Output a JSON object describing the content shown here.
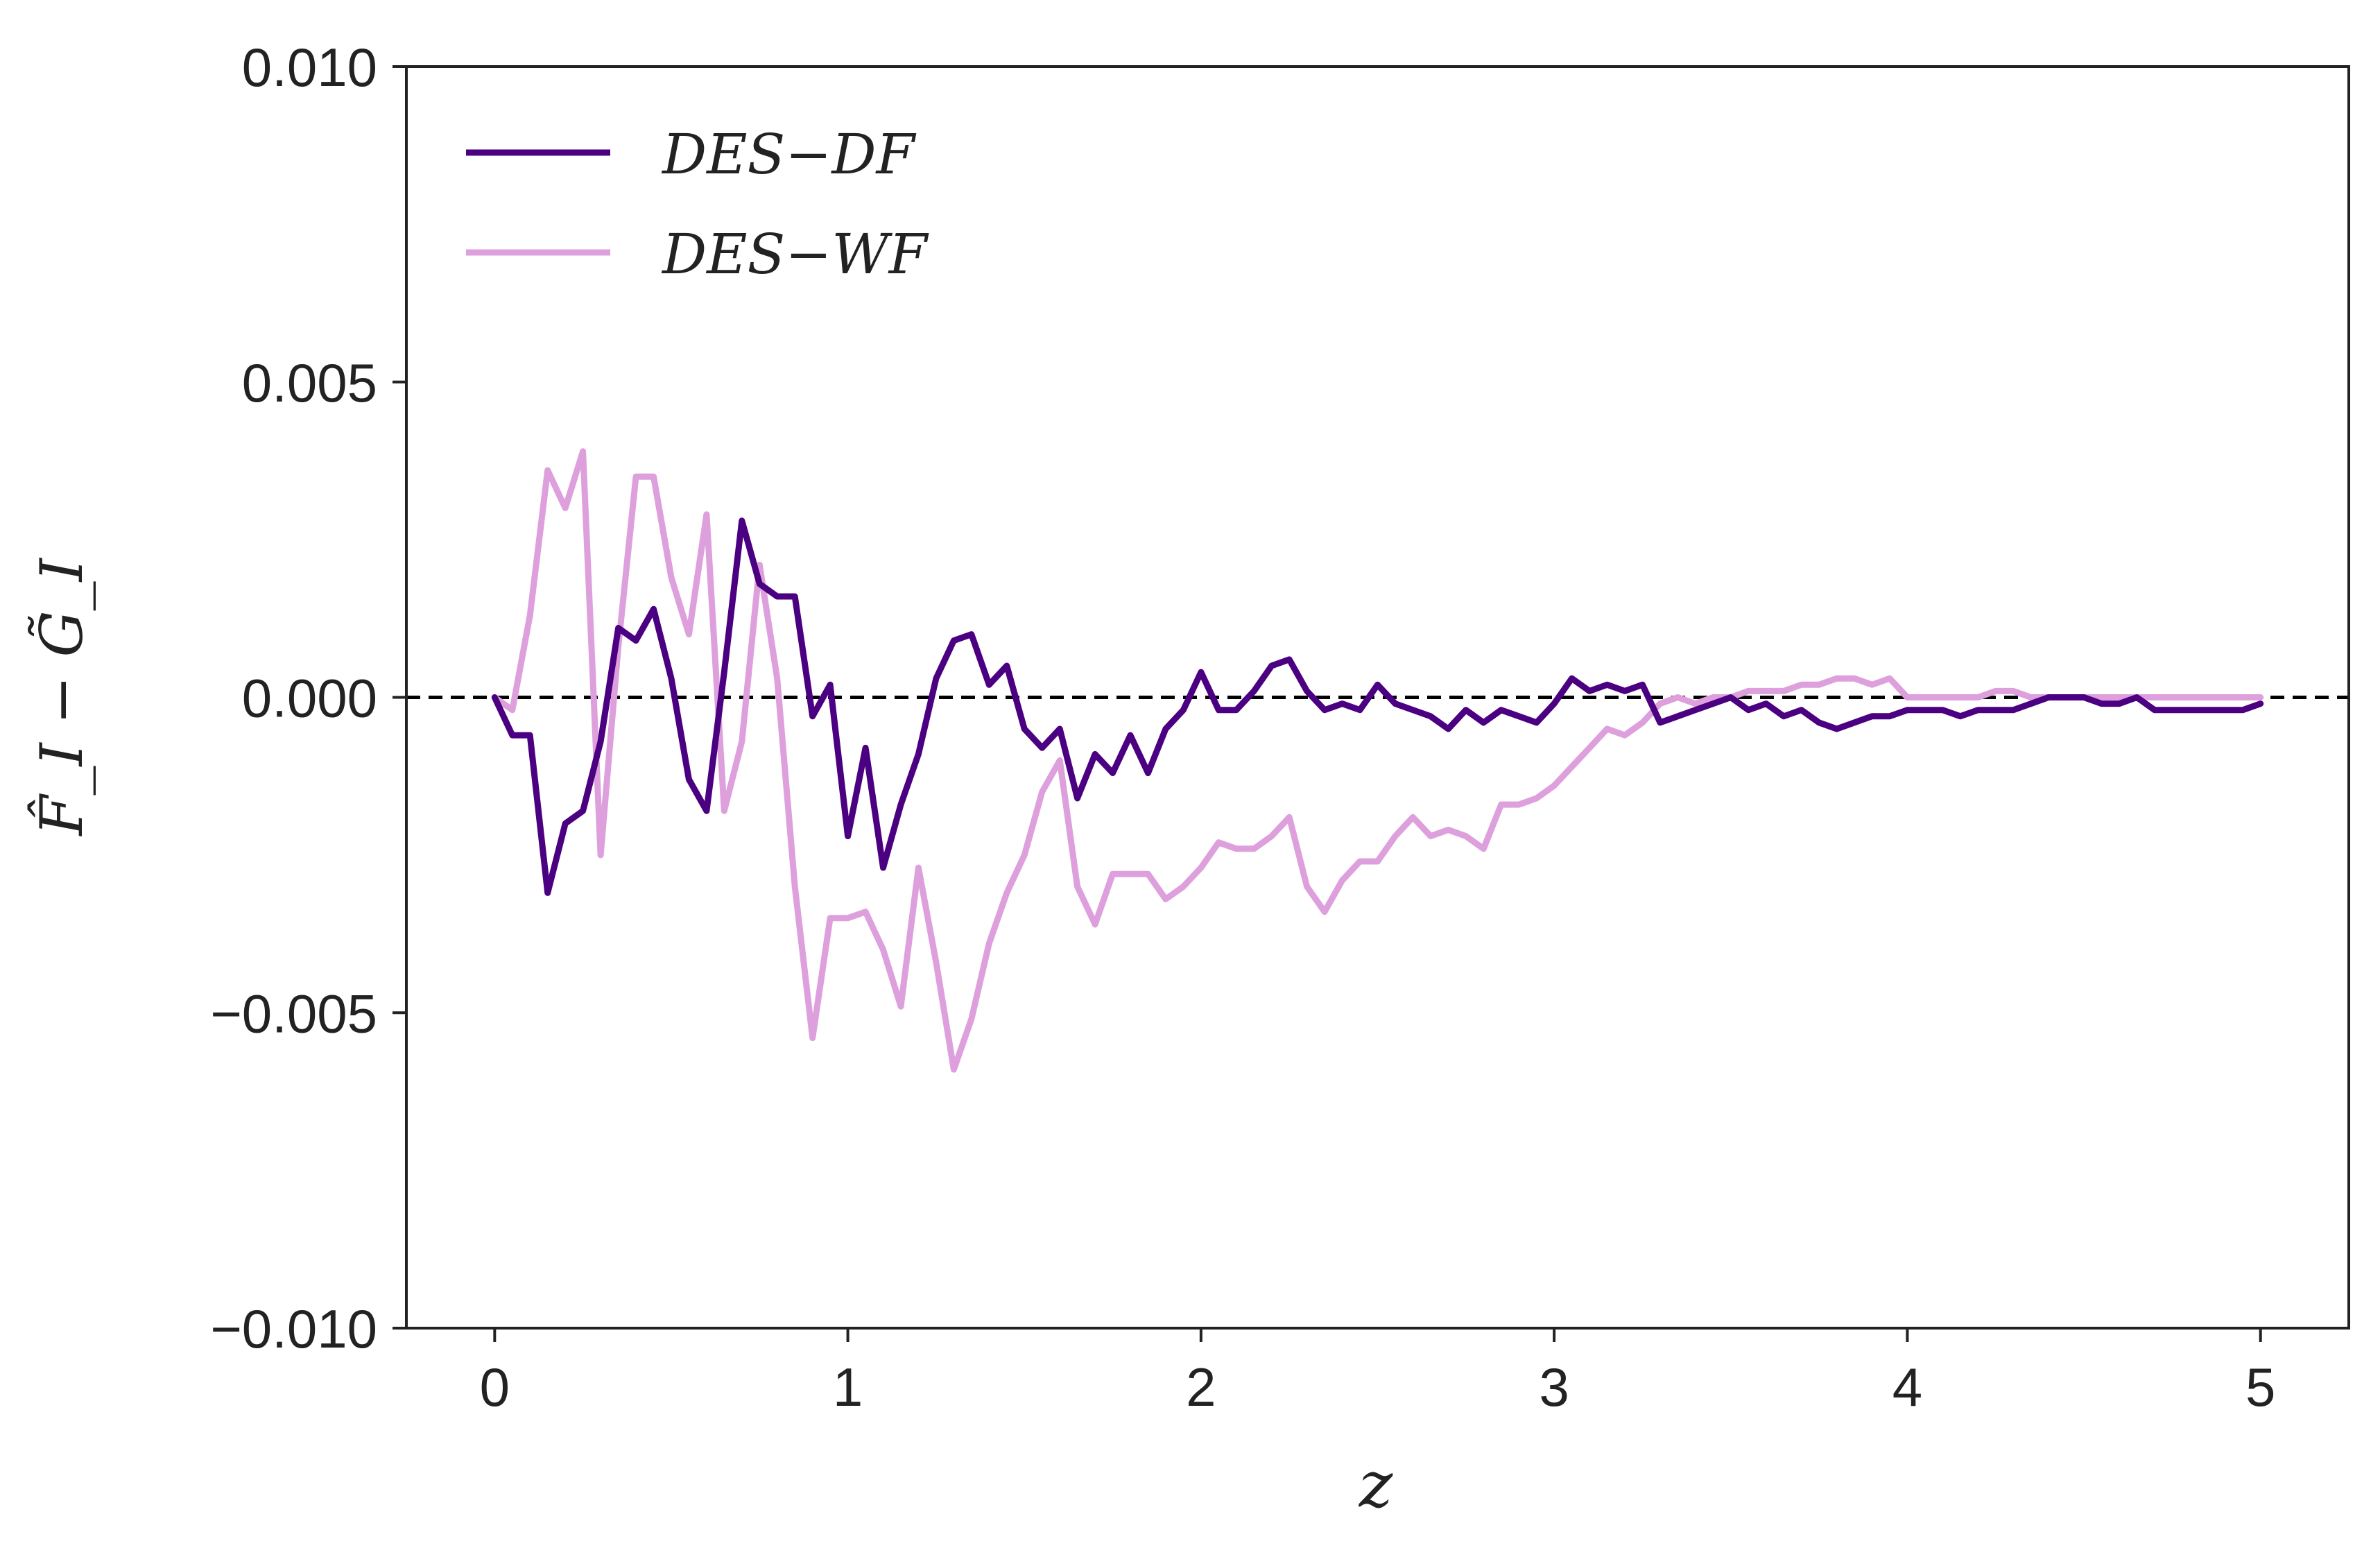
{
  "chart_data": {
    "type": "line",
    "xlabel": "z",
    "ylabel": "F̂_I − G̃_I",
    "xlim": [
      -0.25,
      5.25
    ],
    "ylim": [
      -0.01,
      0.01
    ],
    "xticks": [
      0,
      1,
      2,
      3,
      4,
      5
    ],
    "xtick_labels": [
      "0",
      "1",
      "2",
      "3",
      "4",
      "5"
    ],
    "yticks": [
      -0.01,
      -0.005,
      0.0,
      0.005,
      0.01
    ],
    "ytick_labels": [
      "−0.010",
      "−0.005",
      "0.000",
      "0.005",
      "0.010"
    ],
    "reference_line": {
      "y": 0.0,
      "style": "dashed",
      "color": "#000000"
    },
    "grid": false,
    "legend_position": "top-left",
    "series": [
      {
        "name": "DES−DF",
        "color": "#4b0082",
        "x": [
          0.0,
          0.05,
          0.1,
          0.15,
          0.2,
          0.25,
          0.3,
          0.35,
          0.4,
          0.45,
          0.5,
          0.55,
          0.6,
          0.65,
          0.7,
          0.75,
          0.8,
          0.85,
          0.9,
          0.95,
          1.0,
          1.05,
          1.1,
          1.15,
          1.2,
          1.25,
          1.3,
          1.35,
          1.4,
          1.45,
          1.5,
          1.55,
          1.6,
          1.65,
          1.7,
          1.75,
          1.8,
          1.85,
          1.9,
          1.95,
          2.0,
          2.05,
          2.1,
          2.15,
          2.2,
          2.25,
          2.3,
          2.35,
          2.4,
          2.45,
          2.5,
          2.55,
          2.6,
          2.65,
          2.7,
          2.75,
          2.8,
          2.85,
          2.9,
          2.95,
          3.0,
          3.05,
          3.1,
          3.15,
          3.2,
          3.25,
          3.3,
          3.35,
          3.4,
          3.45,
          3.5,
          3.55,
          3.6,
          3.65,
          3.7,
          3.75,
          3.8,
          3.85,
          3.9,
          3.95,
          4.0,
          4.05,
          4.1,
          4.15,
          4.2,
          4.25,
          4.3,
          4.35,
          4.4,
          4.45,
          4.5,
          4.55,
          4.6,
          4.65,
          4.7,
          4.75,
          4.8,
          4.85,
          4.9,
          4.95,
          5.0
        ],
        "y": [
          0.0,
          -0.0006,
          -0.0006,
          -0.0031,
          -0.002,
          -0.0018,
          -0.0007,
          0.0011,
          0.0009,
          0.0014,
          0.0003,
          -0.0013,
          -0.0018,
          0.0004,
          0.0028,
          0.0018,
          0.0016,
          0.0016,
          -0.0003,
          0.0002,
          -0.0022,
          -0.0008,
          -0.0027,
          -0.0017,
          -0.0009,
          0.0003,
          0.0009,
          0.001,
          0.0002,
          0.0005,
          -0.0005,
          -0.0008,
          -0.0005,
          -0.0016,
          -0.0009,
          -0.0012,
          -0.0006,
          -0.0012,
          -0.0005,
          -0.0002,
          0.0004,
          -0.0002,
          -0.0002,
          0.0001,
          0.0005,
          0.0006,
          0.0001,
          -0.0002,
          -0.0001,
          -0.0002,
          0.0002,
          -0.0001,
          -0.0002,
          -0.0003,
          -0.0005,
          -0.0002,
          -0.0004,
          -0.0002,
          -0.0003,
          -0.0004,
          -0.0001,
          0.0003,
          0.0001,
          0.0002,
          0.0001,
          0.0002,
          -0.0004,
          -0.0003,
          -0.0002,
          -0.0001,
          0.0,
          -0.0002,
          -0.0001,
          -0.0003,
          -0.0002,
          -0.0004,
          -0.0005,
          -0.0004,
          -0.0003,
          -0.0003,
          -0.0002,
          -0.0002,
          -0.0002,
          -0.0003,
          -0.0002,
          -0.0002,
          -0.0002,
          -0.0001,
          0.0,
          0.0,
          0.0,
          -0.0001,
          -0.0001,
          0.0,
          -0.0002,
          -0.0002,
          -0.0002,
          -0.0002,
          -0.0002,
          -0.0002,
          -0.0001
        ]
      },
      {
        "name": "DES−WF",
        "color": "#dda0dd",
        "x": [
          0.0,
          0.05,
          0.1,
          0.15,
          0.2,
          0.25,
          0.3,
          0.35,
          0.4,
          0.45,
          0.5,
          0.55,
          0.6,
          0.65,
          0.7,
          0.75,
          0.8,
          0.85,
          0.9,
          0.95,
          1.0,
          1.05,
          1.1,
          1.15,
          1.2,
          1.25,
          1.3,
          1.35,
          1.4,
          1.45,
          1.5,
          1.55,
          1.6,
          1.65,
          1.7,
          1.75,
          1.8,
          1.85,
          1.9,
          1.95,
          2.0,
          2.05,
          2.1,
          2.15,
          2.2,
          2.25,
          2.3,
          2.35,
          2.4,
          2.45,
          2.5,
          2.55,
          2.6,
          2.65,
          2.7,
          2.75,
          2.8,
          2.85,
          2.9,
          2.95,
          3.0,
          3.05,
          3.1,
          3.15,
          3.2,
          3.25,
          3.3,
          3.35,
          3.4,
          3.45,
          3.5,
          3.55,
          3.6,
          3.65,
          3.7,
          3.75,
          3.8,
          3.85,
          3.9,
          3.95,
          4.0,
          4.05,
          4.1,
          4.15,
          4.2,
          4.25,
          4.3,
          4.35,
          4.4,
          4.45,
          4.5,
          4.55,
          4.6,
          4.65,
          4.7,
          4.75,
          4.8,
          4.85,
          4.9,
          4.95,
          5.0
        ],
        "y": [
          0.0,
          -0.0002,
          0.0013,
          0.0036,
          0.003,
          0.0039,
          -0.0025,
          0.0008,
          0.0035,
          0.0035,
          0.0019,
          0.001,
          0.0029,
          -0.0018,
          -0.0007,
          0.0021,
          0.0003,
          -0.003,
          -0.0054,
          -0.0035,
          -0.0035,
          -0.0034,
          -0.004,
          -0.0049,
          -0.0027,
          -0.0042,
          -0.0059,
          -0.0051,
          -0.0039,
          -0.0031,
          -0.0025,
          -0.0015,
          -0.001,
          -0.003,
          -0.0036,
          -0.0028,
          -0.0028,
          -0.0028,
          -0.0032,
          -0.003,
          -0.0027,
          -0.0023,
          -0.0024,
          -0.0024,
          -0.0022,
          -0.0019,
          -0.003,
          -0.0034,
          -0.0029,
          -0.0026,
          -0.0026,
          -0.0022,
          -0.0019,
          -0.0022,
          -0.0021,
          -0.0022,
          -0.0024,
          -0.0017,
          -0.0017,
          -0.0016,
          -0.0014,
          -0.0011,
          -0.0008,
          -0.0005,
          -0.0006,
          -0.0004,
          -0.0001,
          0.0,
          -0.0001,
          0.0,
          0.0,
          0.0001,
          0.0001,
          0.0001,
          0.0002,
          0.0002,
          0.0003,
          0.0003,
          0.0002,
          0.0003,
          0.0,
          0.0,
          0.0,
          0.0,
          0.0,
          0.0001,
          0.0001,
          0.0,
          0.0,
          0.0,
          0.0,
          0.0,
          0.0,
          0.0,
          0.0,
          0.0,
          0.0,
          0.0,
          0.0,
          0.0,
          0.0
        ]
      }
    ]
  }
}
